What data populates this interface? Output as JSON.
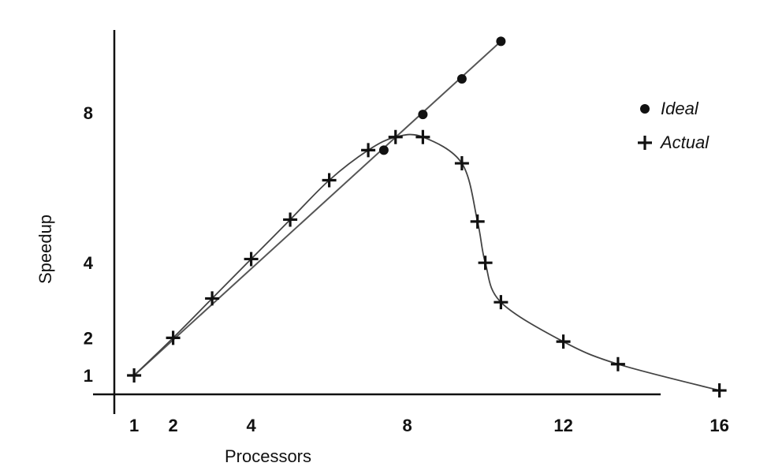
{
  "chart_data": {
    "type": "line",
    "xlabel": "Processors",
    "ylabel": "Speedup",
    "x_ticks": [
      1,
      2,
      4,
      8,
      12,
      16
    ],
    "y_ticks": [
      1,
      2,
      4,
      8
    ],
    "xlim": [
      0.5,
      17
    ],
    "ylim": [
      0.5,
      10.6
    ],
    "grid": false,
    "legend_position": "top-right",
    "series": [
      {
        "name": "Ideal",
        "marker": "dot",
        "x": [
          7.4,
          8.4,
          9.4,
          10.4
        ],
        "y": [
          7.0,
          7.95,
          8.9,
          9.9
        ]
      },
      {
        "name": "Actual",
        "marker": "plus",
        "x": [
          1,
          2,
          3,
          4,
          5,
          6,
          7,
          7.7,
          8.4,
          9.4,
          9.8,
          10.0,
          10.4,
          12.0,
          13.4,
          16.0
        ],
        "y": [
          1.0,
          2.0,
          3.05,
          4.1,
          5.15,
          6.2,
          7.0,
          7.35,
          7.35,
          6.65,
          5.1,
          4.0,
          2.95,
          1.9,
          1.3,
          0.6
        ]
      }
    ],
    "ideal_line": {
      "x": [
        1,
        10.4
      ],
      "y": [
        1.0,
        9.9
      ]
    }
  }
}
